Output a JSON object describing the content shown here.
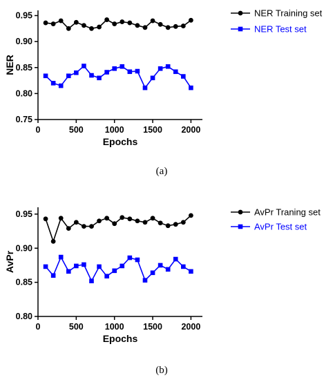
{
  "chart_data": [
    {
      "type": "line",
      "caption": "(a)",
      "xlabel": "Epochs",
      "ylabel": "NER",
      "xlim": [
        0,
        2150
      ],
      "ylim": [
        0.75,
        0.96
      ],
      "xticks": [
        "0",
        "500",
        "1000",
        "1500",
        "2000"
      ],
      "yticks": [
        "0.75",
        "0.80",
        "0.85",
        "0.90",
        "0.95"
      ],
      "legend_position": "right",
      "series": [
        {
          "name": "NER Training set",
          "color": "#000000",
          "marker": "circle",
          "x": [
            100,
            200,
            300,
            400,
            500,
            600,
            700,
            800,
            900,
            1000,
            1100,
            1200,
            1300,
            1400,
            1500,
            1600,
            1700,
            1800,
            1900,
            2000
          ],
          "y": [
            0.936,
            0.934,
            0.94,
            0.925,
            0.937,
            0.931,
            0.925,
            0.928,
            0.942,
            0.934,
            0.938,
            0.936,
            0.931,
            0.927,
            0.94,
            0.933,
            0.927,
            0.929,
            0.93,
            0.941
          ]
        },
        {
          "name": "NER Test set",
          "color": "#0000ff",
          "marker": "square",
          "x": [
            100,
            200,
            300,
            400,
            500,
            600,
            700,
            800,
            900,
            1000,
            1100,
            1200,
            1300,
            1400,
            1500,
            1600,
            1700,
            1800,
            1900,
            2000
          ],
          "y": [
            0.834,
            0.82,
            0.815,
            0.834,
            0.84,
            0.853,
            0.835,
            0.83,
            0.841,
            0.848,
            0.852,
            0.842,
            0.843,
            0.811,
            0.83,
            0.848,
            0.852,
            0.842,
            0.833,
            0.811
          ]
        }
      ]
    },
    {
      "type": "line",
      "caption": "(b)",
      "xlabel": "Epochs",
      "ylabel": "AvPr",
      "xlim": [
        0,
        2150
      ],
      "ylim": [
        0.8,
        0.96
      ],
      "xticks": [
        "0",
        "500",
        "1000",
        "1500",
        "2000"
      ],
      "yticks": [
        "0.80",
        "0.85",
        "0.90",
        "0.95"
      ],
      "legend_position": "right",
      "series": [
        {
          "name": "AvPr Traning set",
          "color": "#000000",
          "marker": "circle",
          "x": [
            100,
            200,
            300,
            400,
            500,
            600,
            700,
            800,
            900,
            1000,
            1100,
            1200,
            1300,
            1400,
            1500,
            1600,
            1700,
            1800,
            1900,
            2000
          ],
          "y": [
            0.943,
            0.91,
            0.944,
            0.929,
            0.938,
            0.932,
            0.932,
            0.94,
            0.944,
            0.936,
            0.945,
            0.943,
            0.94,
            0.938,
            0.944,
            0.937,
            0.933,
            0.935,
            0.938,
            0.948
          ]
        },
        {
          "name": "AvPr Test set",
          "color": "#0000ff",
          "marker": "square",
          "x": [
            100,
            200,
            300,
            400,
            500,
            600,
            700,
            800,
            900,
            1000,
            1100,
            1200,
            1300,
            1400,
            1500,
            1600,
            1700,
            1800,
            1900,
            2000
          ],
          "y": [
            0.873,
            0.86,
            0.887,
            0.866,
            0.874,
            0.876,
            0.852,
            0.873,
            0.859,
            0.867,
            0.874,
            0.886,
            0.883,
            0.853,
            0.864,
            0.875,
            0.869,
            0.884,
            0.873,
            0.866
          ]
        }
      ]
    }
  ]
}
